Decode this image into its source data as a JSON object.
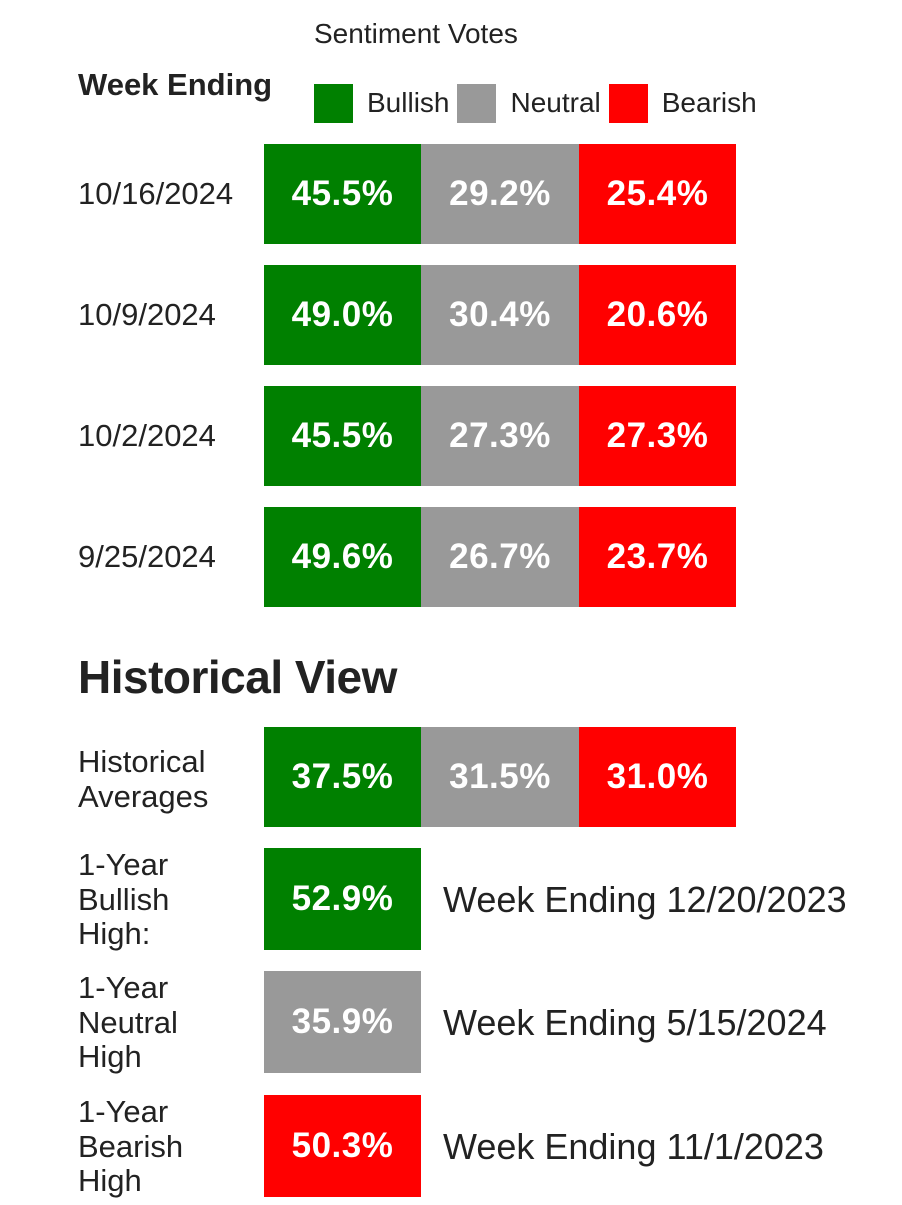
{
  "colors": {
    "bullish": "#008000",
    "neutral": "#999999",
    "bearish": "#ff0000",
    "text": "#222222"
  },
  "header": {
    "sentiment_title": "Sentiment Votes",
    "week_ending_label": "Week Ending"
  },
  "legend": [
    {
      "label": "Bullish",
      "color": "#008000"
    },
    {
      "label": "Neutral",
      "color": "#999999"
    },
    {
      "label": "Bearish",
      "color": "#ff0000"
    }
  ],
  "weeks": [
    {
      "date": "10/16/2024",
      "bullish": "45.5%",
      "neutral": "29.2%",
      "bearish": "25.4%"
    },
    {
      "date": "10/9/2024",
      "bullish": "49.0%",
      "neutral": "30.4%",
      "bearish": "20.6%"
    },
    {
      "date": "10/2/2024",
      "bullish": "45.5%",
      "neutral": "27.3%",
      "bearish": "27.3%"
    },
    {
      "date": "9/25/2024",
      "bullish": "49.6%",
      "neutral": "26.7%",
      "bearish": "23.7%"
    }
  ],
  "historical": {
    "heading": "Historical View",
    "averages": {
      "label_line1": "Historical",
      "label_line2": "Averages",
      "bullish": "37.5%",
      "neutral": "31.5%",
      "bearish": "31.0%"
    },
    "highs": [
      {
        "line1": "1-Year",
        "line2": "Bullish",
        "line3": "High:",
        "value": "52.9%",
        "date_text": "Week Ending 12/20/2023",
        "color": "#008000"
      },
      {
        "line1": "1-Year",
        "line2": "Neutral",
        "line3": "High",
        "value": "35.9%",
        "date_text": "Week Ending 5/15/2024",
        "color": "#999999"
      },
      {
        "line1": "1-Year",
        "line2": "Bearish",
        "line3": "High",
        "value": "50.3%",
        "date_text": "Week Ending 11/1/2023",
        "color": "#ff0000"
      }
    ]
  }
}
